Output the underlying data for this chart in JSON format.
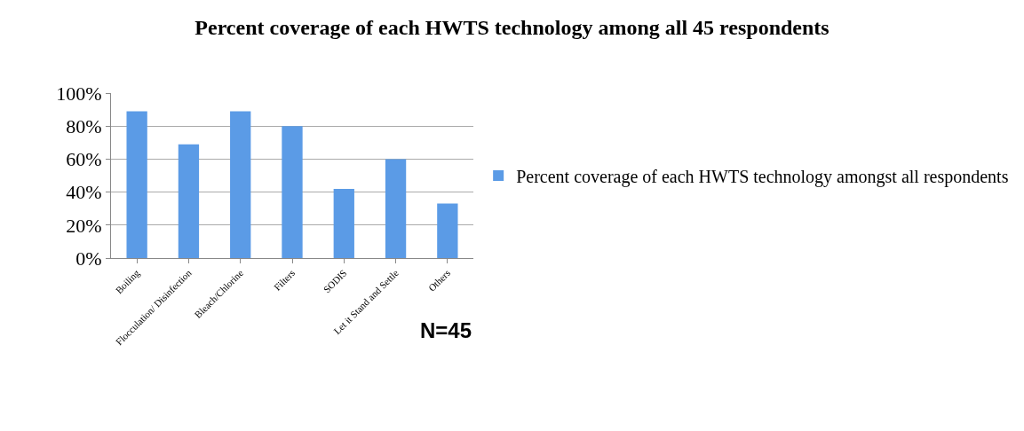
{
  "chart_data": {
    "type": "bar",
    "title": "Percent coverage of each HWTS technology among all 45 respondents",
    "categories": [
      "Boiling",
      "Flocculation/ Disinfection",
      "Bleach/Chlorine",
      "Filters",
      "SODIS",
      "Let it Stand and Settle",
      "Others"
    ],
    "series": [
      {
        "name": "Percent coverage of each HWTS technology amongst all respondents",
        "color": "#5b9be6",
        "values": [
          89,
          69,
          89,
          80,
          42,
          60,
          33
        ]
      }
    ],
    "ylim": [
      0,
      100
    ],
    "yticks": [
      {
        "value": 0,
        "label": "0%"
      },
      {
        "value": 20,
        "label": "20%"
      },
      {
        "value": 40,
        "label": "40%"
      },
      {
        "value": 60,
        "label": "60%"
      },
      {
        "value": 80,
        "label": "80%"
      },
      {
        "value": 100,
        "label": "100%"
      }
    ],
    "grid": "y",
    "legend": "right",
    "annotations": [
      "N=45"
    ]
  }
}
